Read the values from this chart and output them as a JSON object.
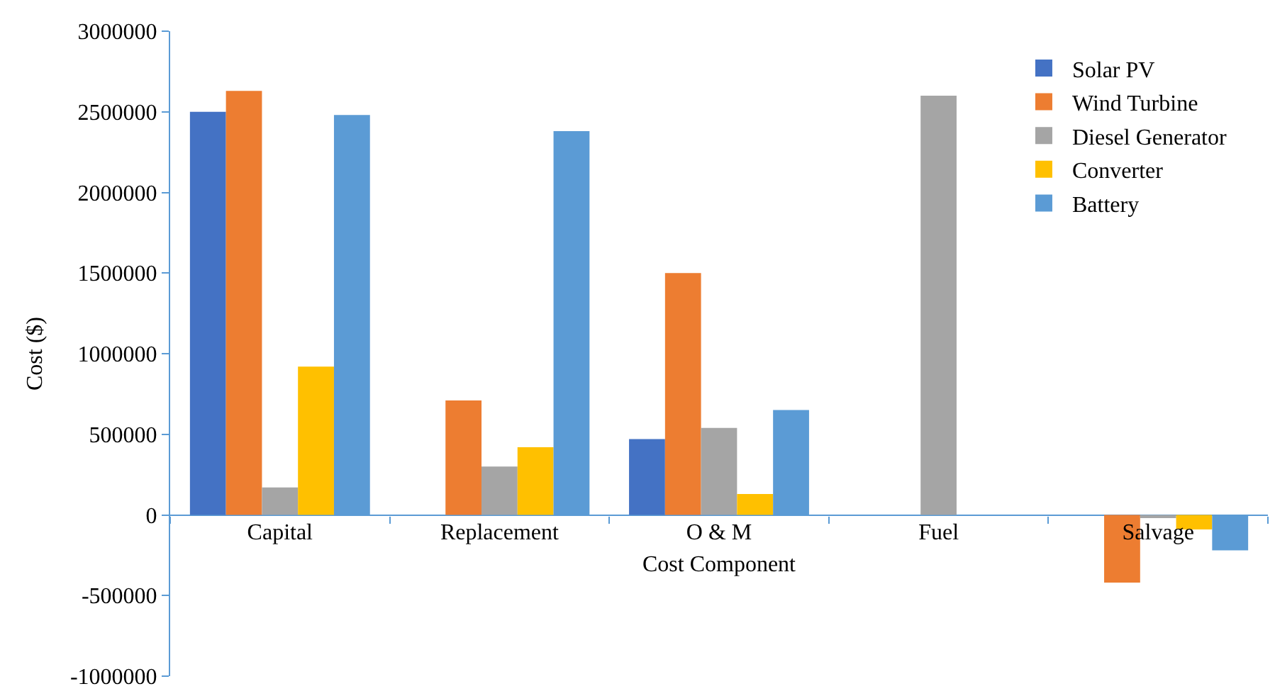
{
  "chart_data": {
    "type": "bar",
    "xlabel": "Cost Component",
    "ylabel": "Cost ($)",
    "categories": [
      "Capital",
      "Replacement",
      "O & M",
      "Fuel",
      "Salvage"
    ],
    "series": [
      {
        "name": "Solar PV",
        "color": "#4472c4",
        "values": [
          2500000,
          0,
          470000,
          0,
          0
        ]
      },
      {
        "name": "Wind Turbine",
        "color": "#ed7d31",
        "values": [
          2630000,
          710000,
          1500000,
          0,
          -420000
        ]
      },
      {
        "name": "Diesel Generator",
        "color": "#a5a5a5",
        "values": [
          170000,
          300000,
          540000,
          2600000,
          -20000
        ]
      },
      {
        "name": "Converter",
        "color": "#ffc000",
        "values": [
          920000,
          420000,
          130000,
          0,
          -90000
        ]
      },
      {
        "name": "Battery",
        "color": "#5b9bd5",
        "values": [
          2480000,
          2380000,
          650000,
          0,
          -220000
        ]
      }
    ],
    "ylim": [
      -1000000,
      3000000
    ],
    "yticks": [
      -1000000,
      -500000,
      0,
      500000,
      1000000,
      1500000,
      2000000,
      2500000,
      3000000
    ],
    "legend": "top right"
  }
}
